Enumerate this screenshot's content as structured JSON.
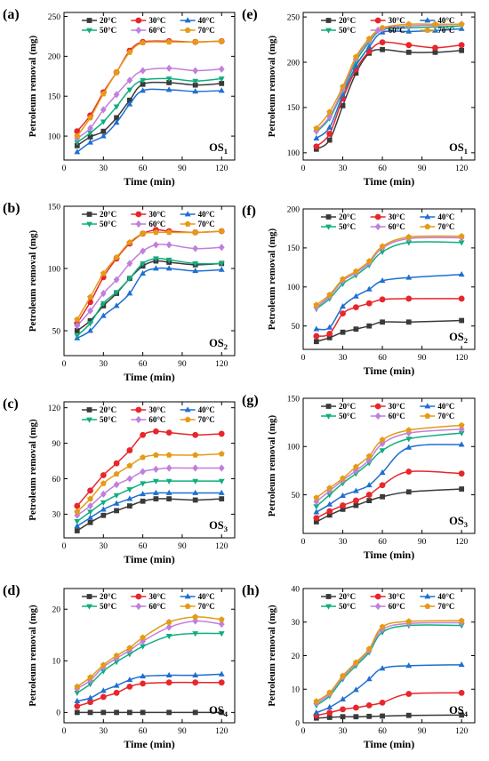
{
  "figure": {
    "background": "#ffffff"
  },
  "chart_data": [
    {
      "id": "a",
      "panel_label": "(a)",
      "type": "line",
      "annotation": "OS",
      "annotation_sub": "1",
      "xlabel": "Time (min)",
      "ylabel": "Petroleum removal (mg)",
      "xlim": [
        0,
        130
      ],
      "xticks": [
        0,
        30,
        60,
        90,
        120
      ],
      "ylim": [
        70,
        255
      ],
      "yticks": [
        100,
        150,
        200,
        250
      ],
      "x": [
        10,
        20,
        30,
        40,
        50,
        60,
        80,
        100,
        120
      ],
      "series": [
        {
          "name": "20°C",
          "color": "#3a3a3a",
          "marker": "square",
          "values": [
            88,
            99,
            106,
            123,
            145,
            165,
            167,
            164,
            166
          ]
        },
        {
          "name": "30°C",
          "color": "#e8262b",
          "marker": "circle",
          "values": [
            106,
            126,
            155,
            180,
            207,
            218,
            219,
            218,
            219
          ]
        },
        {
          "name": "40°C",
          "color": "#1e6fd1",
          "marker": "triangle-up",
          "values": [
            80,
            92,
            100,
            117,
            140,
            157,
            158,
            156,
            157
          ]
        },
        {
          "name": "50°C",
          "color": "#0fae7d",
          "marker": "triangle-down",
          "values": [
            92,
            104,
            118,
            137,
            158,
            170,
            172,
            169,
            172
          ]
        },
        {
          "name": "60°C",
          "color": "#c17fdc",
          "marker": "diamond",
          "values": [
            97,
            110,
            133,
            152,
            170,
            182,
            185,
            182,
            184
          ]
        },
        {
          "name": "70°C",
          "color": "#e59b16",
          "marker": "pentagon",
          "values": [
            100,
            123,
            153,
            180,
            205,
            217,
            218,
            218,
            219
          ]
        }
      ]
    },
    {
      "id": "e",
      "panel_label": "(e)",
      "type": "line",
      "annotation": "OS",
      "annotation_sub": "1",
      "xlabel": "Time (min)",
      "ylabel": "Petroleum removal (mg)",
      "xlim": [
        0,
        130
      ],
      "xticks": [
        0,
        30,
        60,
        90,
        120
      ],
      "ylim": [
        92,
        255
      ],
      "yticks": [
        100,
        150,
        200,
        250
      ],
      "x": [
        10,
        20,
        30,
        40,
        50,
        60,
        80,
        100,
        120
      ],
      "series": [
        {
          "name": "20°C",
          "color": "#3a3a3a",
          "marker": "square",
          "values": [
            104,
            114,
            152,
            188,
            210,
            214,
            211,
            211,
            213
          ]
        },
        {
          "name": "30°C",
          "color": "#e8262b",
          "marker": "circle",
          "values": [
            107,
            121,
            160,
            192,
            212,
            222,
            219,
            216,
            219
          ]
        },
        {
          "name": "40°C",
          "color": "#1e6fd1",
          "marker": "triangle-up",
          "values": [
            116,
            128,
            164,
            196,
            217,
            233,
            234,
            235,
            237
          ]
        },
        {
          "name": "50°C",
          "color": "#0fae7d",
          "marker": "triangle-down",
          "values": [
            123,
            138,
            168,
            201,
            222,
            236,
            238,
            239,
            240
          ]
        },
        {
          "name": "60°C",
          "color": "#c17fdc",
          "marker": "diamond",
          "values": [
            124,
            140,
            170,
            204,
            224,
            237,
            240,
            241,
            242
          ]
        },
        {
          "name": "70°C",
          "color": "#e59b16",
          "marker": "pentagon",
          "values": [
            127,
            145,
            173,
            206,
            226,
            238,
            242,
            242,
            242
          ]
        }
      ]
    },
    {
      "id": "b",
      "panel_label": "(b)",
      "type": "line",
      "annotation": "OS",
      "annotation_sub": "2",
      "xlabel": "Time (min)",
      "ylabel": "Petroleum removal (mg)",
      "xlim": [
        0,
        130
      ],
      "xticks": [
        0,
        30,
        60,
        90,
        120
      ],
      "ylim": [
        30,
        150
      ],
      "yticks": [
        50,
        100,
        150
      ],
      "x": [
        10,
        20,
        30,
        40,
        50,
        60,
        70,
        80,
        100,
        120
      ],
      "series": [
        {
          "name": "20°C",
          "color": "#3a3a3a",
          "marker": "square",
          "values": [
            50,
            58,
            70,
            80,
            92,
            102,
            106,
            105,
            103,
            104
          ]
        },
        {
          "name": "30°C",
          "color": "#e8262b",
          "marker": "circle",
          "values": [
            56,
            73,
            93,
            108,
            120,
            128,
            131,
            130,
            129,
            130
          ]
        },
        {
          "name": "40°C",
          "color": "#1e6fd1",
          "marker": "triangle-up",
          "values": [
            44,
            50,
            62,
            70,
            80,
            96,
            100,
            100,
            98,
            99
          ]
        },
        {
          "name": "50°C",
          "color": "#0fae7d",
          "marker": "triangle-down",
          "values": [
            46,
            56,
            72,
            81,
            92,
            104,
            108,
            107,
            104,
            104
          ]
        },
        {
          "name": "60°C",
          "color": "#c17fdc",
          "marker": "diamond",
          "values": [
            54,
            66,
            80,
            91,
            104,
            114,
            119,
            119,
            116,
            117
          ]
        },
        {
          "name": "70°C",
          "color": "#e59b16",
          "marker": "pentagon",
          "values": [
            59,
            77,
            96,
            109,
            121,
            128,
            129,
            129,
            129,
            130
          ]
        }
      ]
    },
    {
      "id": "f",
      "panel_label": "(f)",
      "type": "line",
      "annotation": "OS",
      "annotation_sub": "2",
      "xlabel": "Time (min)",
      "ylabel": "Petroleum removal (mg)",
      "xlim": [
        0,
        130
      ],
      "xticks": [
        0,
        30,
        60,
        90,
        120
      ],
      "ylim": [
        20,
        200
      ],
      "yticks": [
        50,
        100,
        150,
        200
      ],
      "x": [
        10,
        20,
        30,
        40,
        50,
        60,
        80,
        120
      ],
      "series": [
        {
          "name": "20°C",
          "color": "#3a3a3a",
          "marker": "square",
          "values": [
            30,
            35,
            42,
            46,
            50,
            55,
            55,
            57
          ]
        },
        {
          "name": "30°C",
          "color": "#e8262b",
          "marker": "circle",
          "values": [
            37,
            40,
            66,
            74,
            79,
            84,
            85,
            85
          ]
        },
        {
          "name": "40°C",
          "color": "#1e6fd1",
          "marker": "triangle-up",
          "values": [
            46,
            48,
            75,
            88,
            97,
            108,
            112,
            116
          ]
        },
        {
          "name": "50°C",
          "color": "#0fae7d",
          "marker": "triangle-down",
          "values": [
            72,
            85,
            104,
            115,
            128,
            145,
            157,
            157
          ]
        },
        {
          "name": "60°C",
          "color": "#c17fdc",
          "marker": "diamond",
          "values": [
            74,
            88,
            108,
            118,
            131,
            150,
            162,
            163
          ]
        },
        {
          "name": "70°C",
          "color": "#e59b16",
          "marker": "pentagon",
          "values": [
            77,
            90,
            110,
            120,
            133,
            152,
            164,
            165
          ]
        }
      ]
    },
    {
      "id": "c",
      "panel_label": "(c)",
      "type": "line",
      "annotation": "OS",
      "annotation_sub": "3",
      "xlabel": "Time (min)",
      "ylabel": "Petroleum removal (mg)",
      "xlim": [
        0,
        130
      ],
      "xticks": [
        0,
        30,
        60,
        90,
        120
      ],
      "ylim": [
        10,
        125
      ],
      "yticks": [
        30,
        60,
        90,
        120
      ],
      "x": [
        10,
        20,
        30,
        40,
        50,
        60,
        70,
        80,
        100,
        120
      ],
      "series": [
        {
          "name": "20°C",
          "color": "#3a3a3a",
          "marker": "square",
          "values": [
            16,
            23,
            29,
            33,
            37,
            41,
            43,
            43,
            42,
            43
          ]
        },
        {
          "name": "30°C",
          "color": "#e8262b",
          "marker": "circle",
          "values": [
            37,
            50,
            63,
            73,
            84,
            97,
            100,
            99,
            97,
            98
          ]
        },
        {
          "name": "40°C",
          "color": "#1e6fd1",
          "marker": "triangle-up",
          "values": [
            20,
            27,
            34,
            39,
            43,
            47,
            48,
            48,
            48,
            48
          ]
        },
        {
          "name": "50°C",
          "color": "#0fae7d",
          "marker": "triangle-down",
          "values": [
            24,
            32,
            40,
            46,
            51,
            56,
            58,
            58,
            58,
            58
          ]
        },
        {
          "name": "60°C",
          "color": "#c17fdc",
          "marker": "diamond",
          "values": [
            29,
            37,
            47,
            55,
            60,
            66,
            68,
            69,
            69,
            69
          ]
        },
        {
          "name": "70°C",
          "color": "#e59b16",
          "marker": "pentagon",
          "values": [
            32,
            43,
            56,
            64,
            71,
            78,
            80,
            80,
            80,
            81
          ]
        }
      ]
    },
    {
      "id": "g",
      "panel_label": "(g)",
      "type": "line",
      "annotation": "OS",
      "annotation_sub": "3",
      "xlabel": "Time (min)",
      "ylabel": "Petroleum removal (mg)",
      "xlim": [
        0,
        130
      ],
      "xticks": [
        0,
        30,
        60,
        90,
        120
      ],
      "ylim": [
        10,
        150
      ],
      "yticks": [
        50,
        100,
        150
      ],
      "x": [
        10,
        20,
        30,
        40,
        50,
        60,
        80,
        120
      ],
      "series": [
        {
          "name": "20°C",
          "color": "#3a3a3a",
          "marker": "square",
          "values": [
            22,
            29,
            35,
            39,
            44,
            48,
            53,
            56
          ]
        },
        {
          "name": "30°C",
          "color": "#e8262b",
          "marker": "circle",
          "values": [
            26,
            33,
            39,
            44,
            50,
            60,
            74,
            72
          ]
        },
        {
          "name": "40°C",
          "color": "#1e6fd1",
          "marker": "triangle-up",
          "values": [
            32,
            40,
            49,
            54,
            60,
            73,
            99,
            102
          ]
        },
        {
          "name": "50°C",
          "color": "#0fae7d",
          "marker": "triangle-down",
          "values": [
            38,
            50,
            62,
            72,
            83,
            96,
            108,
            114
          ]
        },
        {
          "name": "60°C",
          "color": "#c17fdc",
          "marker": "diamond",
          "values": [
            43,
            54,
            65,
            75,
            86,
            103,
            114,
            118
          ]
        },
        {
          "name": "70°C",
          "color": "#e59b16",
          "marker": "pentagon",
          "values": [
            47,
            57,
            67,
            79,
            90,
            107,
            117,
            122
          ]
        }
      ]
    },
    {
      "id": "d",
      "panel_label": "(d)",
      "type": "line",
      "annotation": "OS",
      "annotation_sub": "4",
      "xlabel": "Time (min)",
      "ylabel": "Petroleum removal (mg)",
      "xlim": [
        0,
        130
      ],
      "xticks": [
        0,
        30,
        60,
        90,
        120
      ],
      "ylim": [
        -2,
        24
      ],
      "yticks": [
        0,
        10,
        20
      ],
      "x": [
        10,
        20,
        30,
        40,
        50,
        60,
        80,
        100,
        120
      ],
      "series": [
        {
          "name": "20°C",
          "color": "#3a3a3a",
          "marker": "square",
          "values": [
            0,
            0,
            0,
            0,
            0,
            0,
            0,
            0,
            0
          ]
        },
        {
          "name": "30°C",
          "color": "#e8262b",
          "marker": "circle",
          "values": [
            1.2,
            2.0,
            3.0,
            3.8,
            5.0,
            5.6,
            5.8,
            5.8,
            5.8
          ]
        },
        {
          "name": "40°C",
          "color": "#1e6fd1",
          "marker": "triangle-up",
          "values": [
            2.2,
            2.8,
            4.2,
            5.2,
            6.3,
            7.0,
            7.2,
            7.2,
            7.4
          ]
        },
        {
          "name": "50°C",
          "color": "#0fae7d",
          "marker": "triangle-down",
          "values": [
            3.8,
            5.5,
            8.0,
            9.8,
            11.3,
            12.8,
            14.8,
            15.3,
            15.3
          ]
        },
        {
          "name": "60°C",
          "color": "#c17fdc",
          "marker": "diamond",
          "values": [
            4.6,
            6.2,
            8.8,
            10.5,
            12.0,
            13.8,
            16.5,
            17.7,
            17.1
          ]
        },
        {
          "name": "70°C",
          "color": "#e59b16",
          "marker": "pentagon",
          "values": [
            5.0,
            6.8,
            9.2,
            11.0,
            12.5,
            14.5,
            17.5,
            18.5,
            18.0
          ]
        }
      ]
    },
    {
      "id": "h",
      "panel_label": "(h)",
      "type": "line",
      "annotation": "OS",
      "annotation_sub": "4",
      "xlabel": "Time (min)",
      "ylabel": "Petroleum removal (mg)",
      "xlim": [
        0,
        130
      ],
      "xticks": [
        0,
        30,
        60,
        90,
        120
      ],
      "ylim": [
        0,
        40
      ],
      "yticks": [
        0,
        10,
        20,
        30,
        40
      ],
      "x": [
        10,
        20,
        30,
        40,
        50,
        60,
        80,
        120
      ],
      "series": [
        {
          "name": "20°C",
          "color": "#3a3a3a",
          "marker": "square",
          "values": [
            1.4,
            1.6,
            1.8,
            1.8,
            1.9,
            2.0,
            2.2,
            2.3
          ]
        },
        {
          "name": "30°C",
          "color": "#e8262b",
          "marker": "circle",
          "values": [
            2.2,
            3.0,
            4.0,
            4.5,
            5.2,
            6.0,
            8.6,
            8.9
          ]
        },
        {
          "name": "40°C",
          "color": "#1e6fd1",
          "marker": "triangle-up",
          "values": [
            3.0,
            4.6,
            7.0,
            9.8,
            13.0,
            16.2,
            17.0,
            17.3
          ]
        },
        {
          "name": "50°C",
          "color": "#0fae7d",
          "marker": "triangle-down",
          "values": [
            5.2,
            8.0,
            13.0,
            17.0,
            21.0,
            27.0,
            29.0,
            29.0
          ]
        },
        {
          "name": "60°C",
          "color": "#c17fdc",
          "marker": "diamond",
          "values": [
            5.8,
            8.6,
            13.6,
            17.6,
            21.6,
            27.8,
            29.6,
            29.8
          ]
        },
        {
          "name": "70°C",
          "color": "#e59b16",
          "marker": "pentagon",
          "values": [
            6.4,
            9.0,
            14.0,
            18.0,
            22.0,
            28.6,
            30.2,
            30.4
          ]
        }
      ]
    }
  ]
}
